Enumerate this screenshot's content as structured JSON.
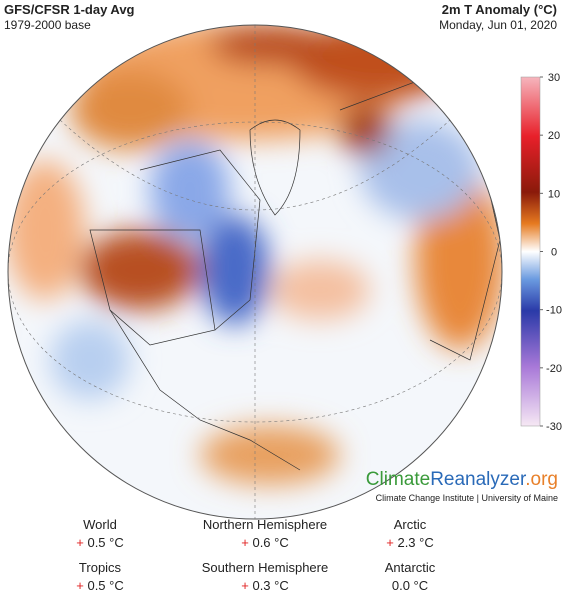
{
  "header": {
    "title": "GFS/CFSR 1-day Avg",
    "base": "1979-2000 base",
    "variable": "2m T Anomaly (°C)",
    "date": "Monday, Jun 01, 2020"
  },
  "colorbar": {
    "range": [
      -30,
      30
    ],
    "ticks": [
      30,
      20,
      10,
      0,
      -10,
      -20,
      -30
    ]
  },
  "logo": {
    "part1": "Climate",
    "part2": "Reanalyzer",
    "part3": ".org",
    "credit": "Climate Change Institute | University of Maine"
  },
  "stats": [
    {
      "name": "World",
      "sign": "+",
      "value": "0.5 °C"
    },
    {
      "name": "Northern Hemisphere",
      "sign": "+",
      "value": "0.6 °C"
    },
    {
      "name": "Arctic",
      "sign": "+",
      "value": "2.3 °C"
    },
    {
      "name": "Tropics",
      "sign": "+",
      "value": "0.5 °C"
    },
    {
      "name": "Southern Hemisphere",
      "sign": "+",
      "value": "0.3 °C"
    },
    {
      "name": "Antarctic",
      "sign": "",
      "value": "0.0 °C"
    }
  ]
}
